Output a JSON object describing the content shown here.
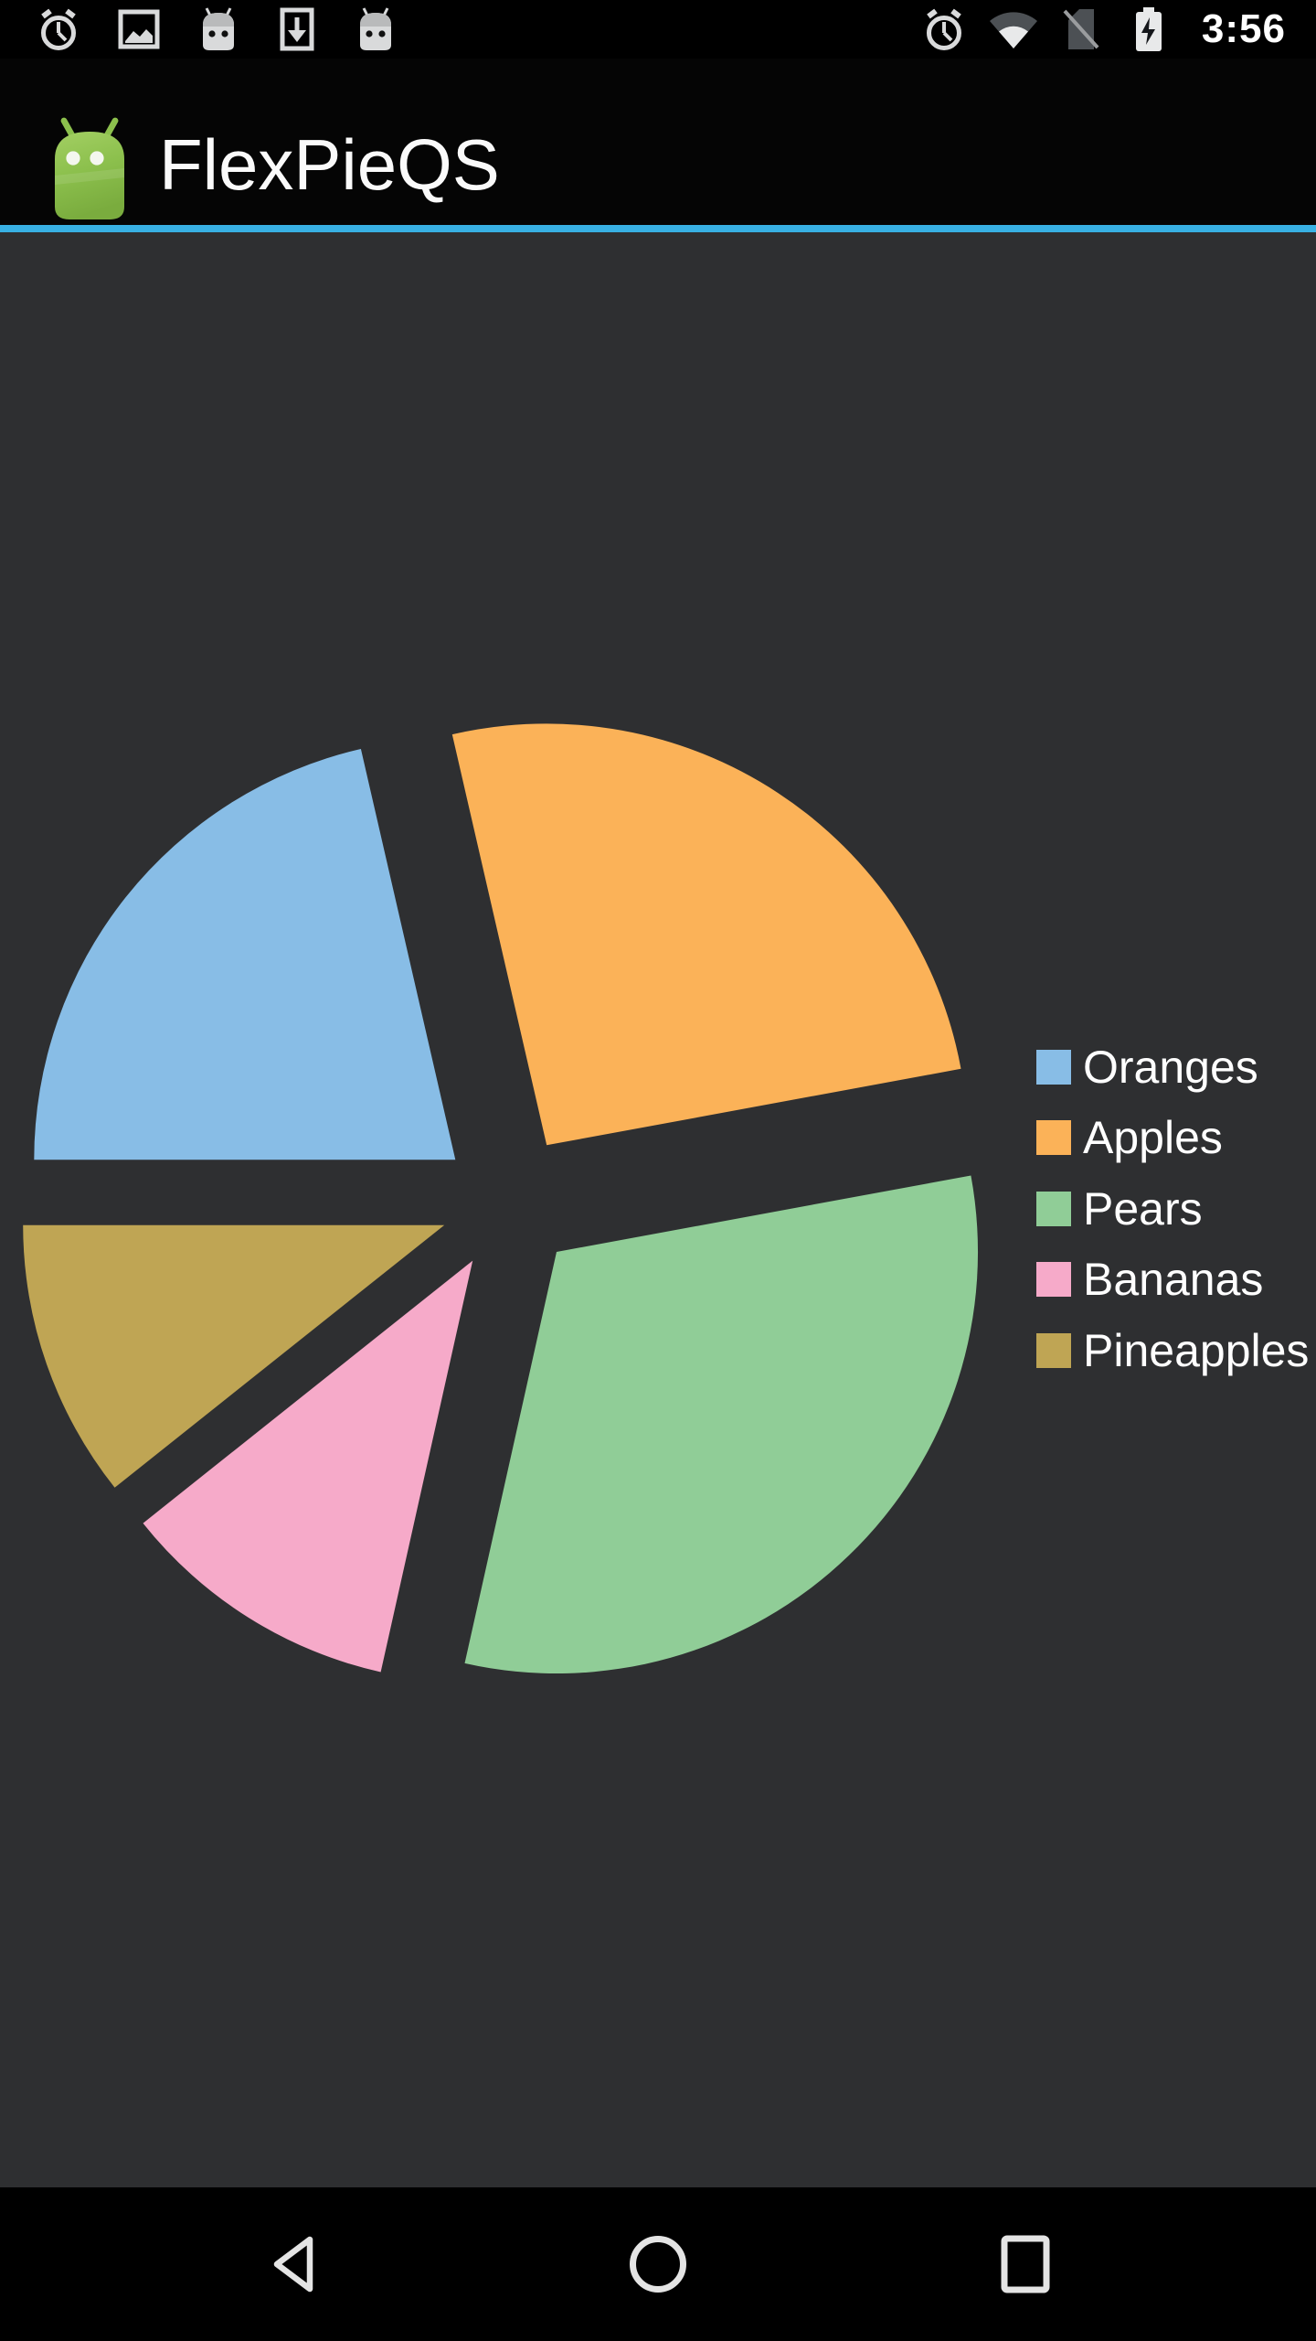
{
  "status_bar": {
    "time": "3:56",
    "left_icons": [
      "alarm-icon",
      "gallery-icon",
      "android-icon",
      "download-icon",
      "android-icon"
    ],
    "right_icons": [
      "alarm-icon",
      "wifi-icon",
      "no-sim-icon",
      "battery-charging-icon"
    ]
  },
  "app_bar": {
    "title": "FlexPieQS",
    "app_icon": "android-robot-icon",
    "accent_color": "#38b0e3"
  },
  "chart_data": {
    "type": "pie",
    "title": "",
    "legend_position": "right",
    "legend_labels": [
      "Oranges",
      "Apples",
      "Pears",
      "Bananas",
      "Pineapples"
    ],
    "start_angle_deg": 180,
    "direction": "clockwise",
    "exploded": true,
    "explode_offset_ratio": 0.163,
    "items": [
      {
        "label": "Oranges",
        "value": 21.4,
        "angle_span_deg": 77.0,
        "color": "#88bde6"
      },
      {
        "label": "Apples",
        "value": 25.7,
        "angle_span_deg": 92.5,
        "color": "#fbb258"
      },
      {
        "label": "Pears",
        "value": 31.4,
        "angle_span_deg": 113.1,
        "color": "#90cd97"
      },
      {
        "label": "Bananas",
        "value": 10.8,
        "angle_span_deg": 38.9,
        "color": "#f6aac9"
      },
      {
        "label": "Pineapples",
        "value": 10.7,
        "angle_span_deg": 38.5,
        "color": "#bfa554"
      }
    ]
  },
  "nav_bar": {
    "icons": [
      "back-icon",
      "home-icon",
      "recents-icon"
    ]
  },
  "colors": {
    "content_background": "#2e2f31",
    "bar_background": "#000000",
    "app_bar_background": "#050505",
    "accent_line": "#38b0e3",
    "status_icon": "#d9dadb",
    "dim_icon": "#4c5054",
    "nav_icon": "#e4e4e4",
    "legend_text": "#ffffff"
  }
}
